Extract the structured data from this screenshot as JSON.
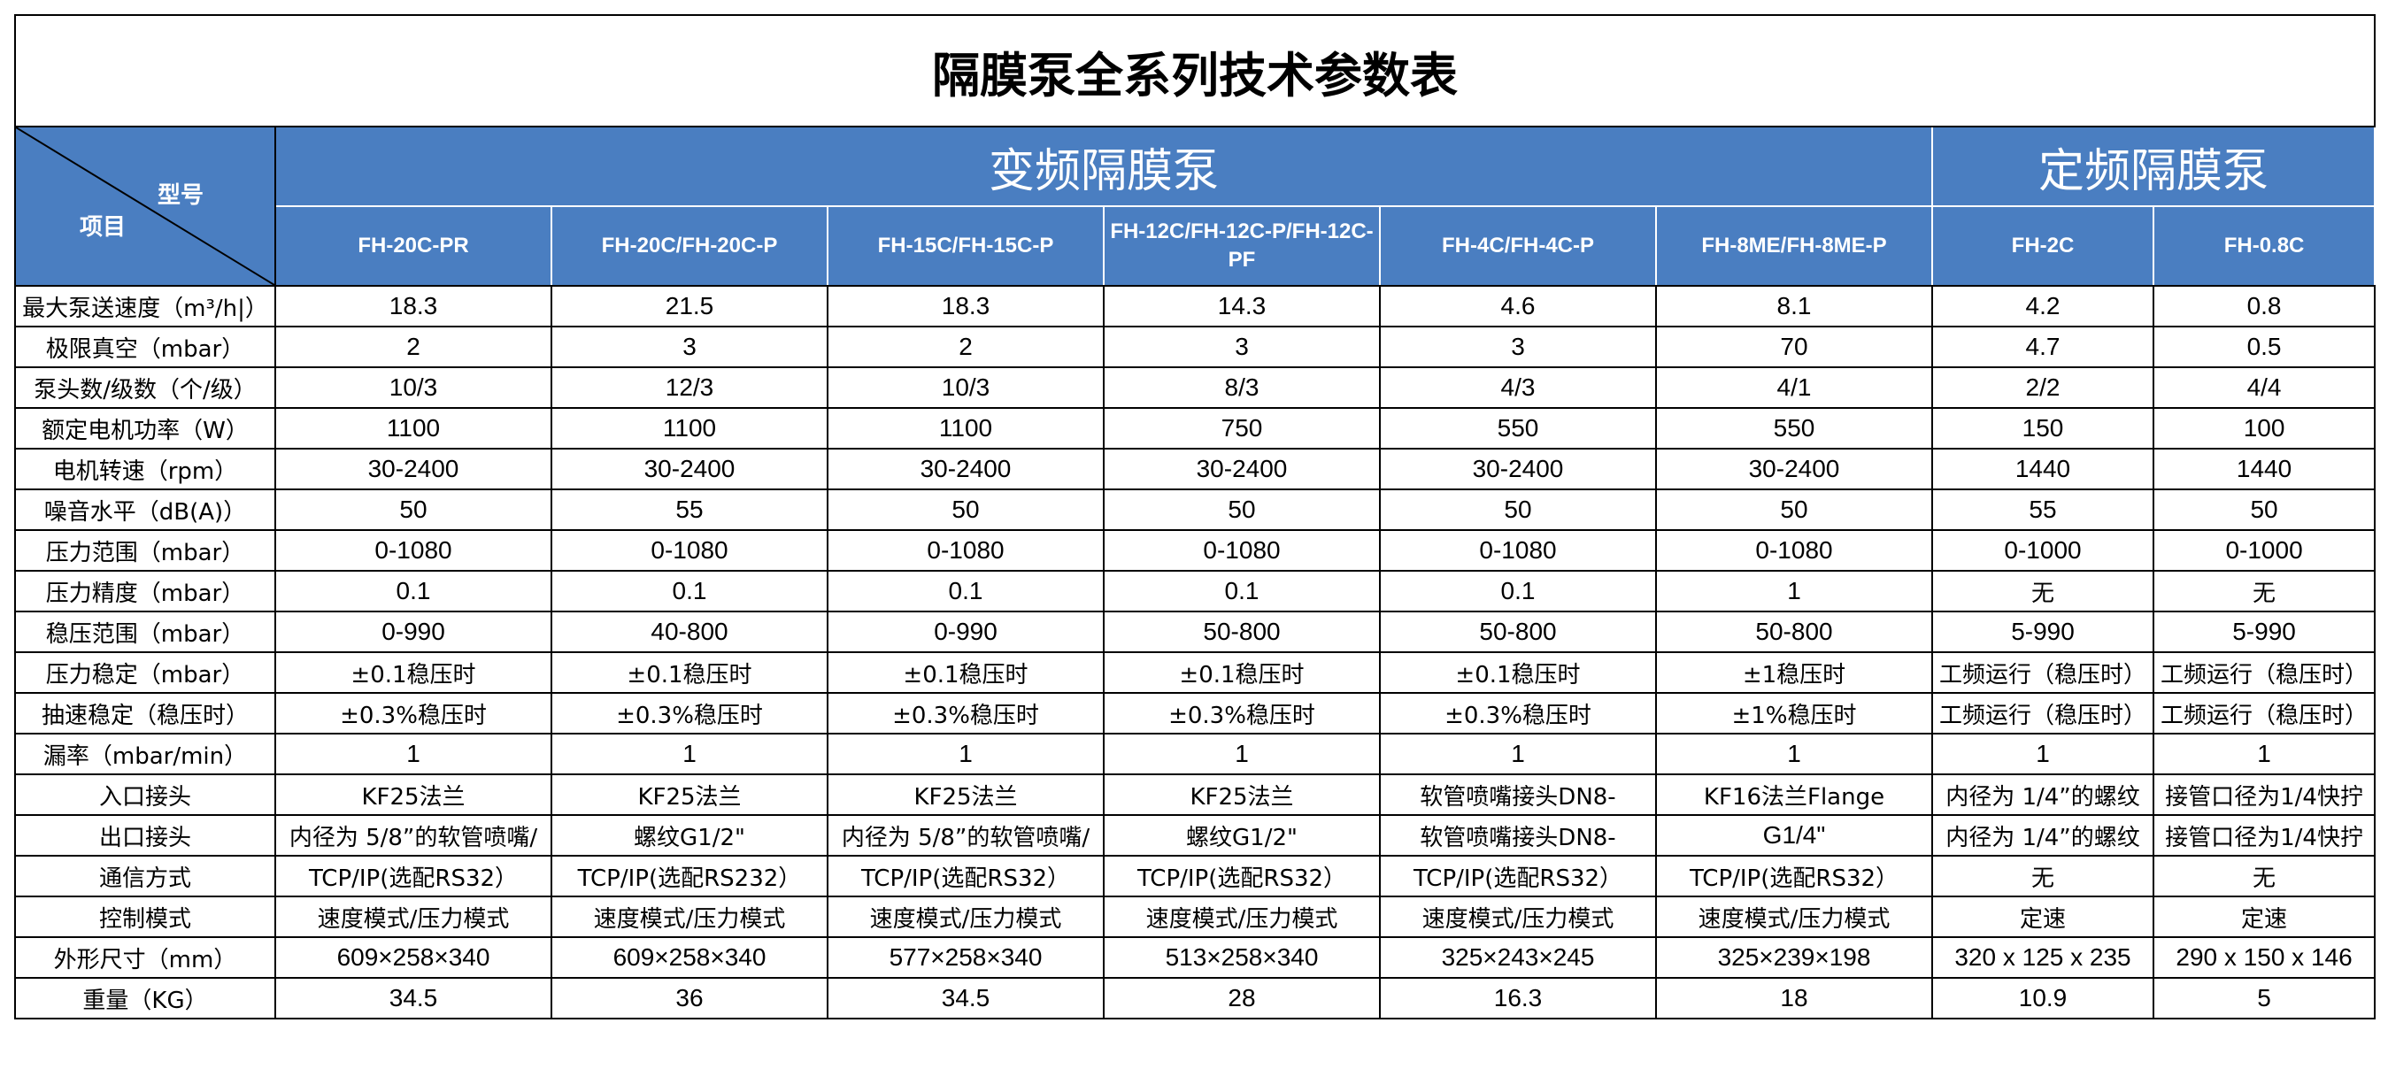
{
  "title": "隔膜泵全系列技术参数表",
  "corner": {
    "type_label": "型号",
    "item_label": "项目"
  },
  "groups": [
    {
      "label": "变频隔膜泵"
    },
    {
      "label": "定频隔膜泵"
    }
  ],
  "models": [
    "FH-20C-PR",
    "FH-20C/FH-20C-P",
    "FH-15C/FH-15C-P",
    "FH-12C/FH-12C-P/FH-12C-PF",
    "FH-4C/FH-4C-P",
    "FH-8ME/FH-8ME-P",
    "FH-2C",
    "FH-0.8C"
  ],
  "rows": [
    {
      "label": "最大泵送速度（m³/h|）",
      "values": [
        "18.3",
        "21.5",
        "18.3",
        "14.3",
        "4.6",
        "8.1",
        "4.2",
        "0.8"
      ]
    },
    {
      "label": "极限真空（mbar）",
      "values": [
        "2",
        "3",
        "2",
        "3",
        "3",
        "70",
        "4.7",
        "0.5"
      ]
    },
    {
      "label": "泵头数/级数（个/级）",
      "values": [
        "10/3",
        "12/3",
        "10/3",
        "8/3",
        "4/3",
        "4/1",
        "2/2",
        "4/4"
      ]
    },
    {
      "label": "额定电机功率（W）",
      "values": [
        "1100",
        "1100",
        "1100",
        "750",
        "550",
        "550",
        "150",
        "100"
      ]
    },
    {
      "label": "电机转速（rpm）",
      "values": [
        "30-2400",
        "30-2400",
        "30-2400",
        "30-2400",
        "30-2400",
        "30-2400",
        "1440",
        "1440"
      ]
    },
    {
      "label": "噪音水平（dB(A)）",
      "values": [
        "50",
        "55",
        "50",
        "50",
        "50",
        "50",
        "55",
        "50"
      ]
    },
    {
      "label": "压力范围（mbar）",
      "values": [
        "0-1080",
        "0-1080",
        "0-1080",
        "0-1080",
        "0-1080",
        "0-1080",
        "0-1000",
        "0-1000"
      ]
    },
    {
      "label": "压力精度（mbar）",
      "values": [
        "0.1",
        "0.1",
        "0.1",
        "0.1",
        "0.1",
        "1",
        "无",
        "无"
      ]
    },
    {
      "label": "稳压范围（mbar）",
      "values": [
        "0-990",
        "40-800",
        "0-990",
        "50-800",
        "50-800",
        "50-800",
        "5-990",
        "5-990"
      ]
    },
    {
      "label": "压力稳定（mbar）",
      "values": [
        "±0.1稳压时",
        "±0.1稳压时",
        "±0.1稳压时",
        "±0.1稳压时",
        "±0.1稳压时",
        "±1稳压时",
        "工频运行（稳压时）",
        "工频运行（稳压时）"
      ]
    },
    {
      "label": "抽速稳定（稳压时）",
      "values": [
        "±0.3%稳压时",
        "±0.3%稳压时",
        "±0.3%稳压时",
        "±0.3%稳压时",
        "±0.3%稳压时",
        "±1%稳压时",
        "工频运行（稳压时）",
        "工频运行（稳压时）"
      ]
    },
    {
      "label": "漏率（mbar/min）",
      "values": [
        "1",
        "1",
        "1",
        "1",
        "1",
        "1",
        "1",
        "1"
      ]
    },
    {
      "label": "入口接头",
      "values": [
        "KF25法兰",
        "KF25法兰",
        "KF25法兰",
        "KF25法兰",
        "软管喷嘴接头DN8-",
        "KF16法兰Flange",
        "内径为 1/4”的螺纹",
        "接管口径为1/4快拧"
      ]
    },
    {
      "label": "出口接头",
      "values": [
        "内径为 5/8”的软管喷嘴/",
        "螺纹G1/2\"",
        "内径为 5/8”的软管喷嘴/",
        "螺纹G1/2\"",
        "软管喷嘴接头DN8-",
        "G1/4\"",
        "内径为 1/4”的螺纹",
        "接管口径为1/4快拧"
      ]
    },
    {
      "label": "通信方式",
      "values": [
        "TCP/IP(选配RS32）",
        "TCP/IP(选配RS232）",
        "TCP/IP(选配RS32）",
        "TCP/IP(选配RS32）",
        "TCP/IP(选配RS32）",
        "TCP/IP(选配RS32）",
        "无",
        "无"
      ]
    },
    {
      "label": "控制模式",
      "values": [
        "速度模式/压力模式",
        "速度模式/压力模式",
        "速度模式/压力模式",
        "速度模式/压力模式",
        "速度模式/压力模式",
        "速度模式/压力模式",
        "定速",
        "定速"
      ]
    },
    {
      "label": "外形尺寸（mm）",
      "values": [
        "609×258×340",
        "609×258×340",
        "577×258×340",
        "513×258×340",
        "325×243×245",
        "325×239×198",
        "320 x 125 x 235",
        "290 x 150 x 146"
      ]
    },
    {
      "label": "重量（KG）",
      "values": [
        "34.5",
        "36",
        "34.5",
        "28",
        "16.3",
        "18",
        "10.9",
        "5"
      ]
    }
  ],
  "colors": {
    "header_bg": "#4a7ec1",
    "header_text": "#ffffff",
    "border": "#000000"
  }
}
